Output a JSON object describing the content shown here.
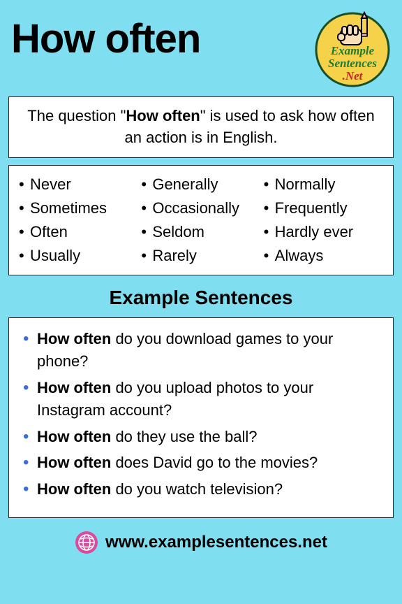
{
  "colors": {
    "page_bg": "#7fdff0",
    "box_bg": "#ffffff",
    "box_border": "#222222",
    "text": "#000000",
    "bullet_blue": "#3a6fd8",
    "logo_yellow": "#f6d24a",
    "logo_border": "#1a4f26",
    "logo_fist": "#f9dfb8",
    "logo_pencil_body": "#f6d24a",
    "logo_pencil_tip": "#efb7d0",
    "logo_text_top": "#1e7a32",
    "logo_text_bottom": "#c2282d",
    "globe_pink": "#db4aa0",
    "globe_white": "#ffffff"
  },
  "title": "How often",
  "logo": {
    "line1": "Example",
    "line2": "Sentences",
    "line3": ".Net"
  },
  "definition": {
    "pre": "The question \"",
    "bold": "How often",
    "post": "\" is used to ask how often an action is in English."
  },
  "adverbs": {
    "col1": [
      "Never",
      "Sometimes",
      "Often",
      "Usually"
    ],
    "col2": [
      "Generally",
      "Occasionally",
      "Seldom",
      "Rarely"
    ],
    "col3": [
      "Normally",
      "Frequently",
      "Hardly ever",
      "Always"
    ]
  },
  "section_heading": "Example Sentences",
  "examples": [
    {
      "bold": "How often",
      "rest": " do you download games to your phone?"
    },
    {
      "bold": "How often",
      "rest": " do you upload photos to your Instagram account?"
    },
    {
      "bold": "How often",
      "rest": " do they use the ball?"
    },
    {
      "bold": "How often",
      "rest": " does David go to the movies?"
    },
    {
      "bold": "How often",
      "rest": " do you watch television?"
    }
  ],
  "footer_url": "www.examplesentences.net"
}
